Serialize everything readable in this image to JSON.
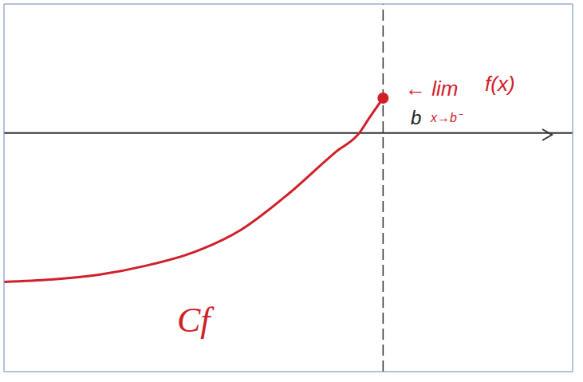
{
  "chart_data": {
    "type": "line",
    "x": [
      -8,
      -7,
      -6,
      -5,
      -4,
      -3,
      -2,
      -1,
      -0.5,
      -0.3,
      0
    ],
    "series": [
      {
        "name": "Cf",
        "color": "#d0202a",
        "values": [
          -3.12,
          -3.07,
          -2.97,
          -2.78,
          -2.5,
          -2.03,
          -1.28,
          -0.4,
          0,
          0.3,
          0.73
        ],
        "marker": "end"
      }
    ],
    "xlim": [
      -8,
      4
    ],
    "ylim": [
      -5,
      2.7
    ],
    "xticks": [
      -8,
      -7,
      -6,
      -5,
      -4,
      -3,
      -2,
      -1,
      0,
      1,
      2,
      3,
      4
    ],
    "yticks": [
      -5,
      -4,
      -3,
      -2,
      -1,
      0,
      1,
      2
    ],
    "grid": true,
    "tick_labels": false,
    "origin": {
      "x": 0,
      "y": 0
    },
    "annotations": [
      {
        "text": "← lim",
        "color": "#d0202a"
      },
      {
        "text": "x→b⁻",
        "color": "#d0202a"
      },
      {
        "text": "f(x)",
        "color": "#d0202a"
      },
      {
        "text": "b",
        "color": "#222222"
      }
    ]
  }
}
